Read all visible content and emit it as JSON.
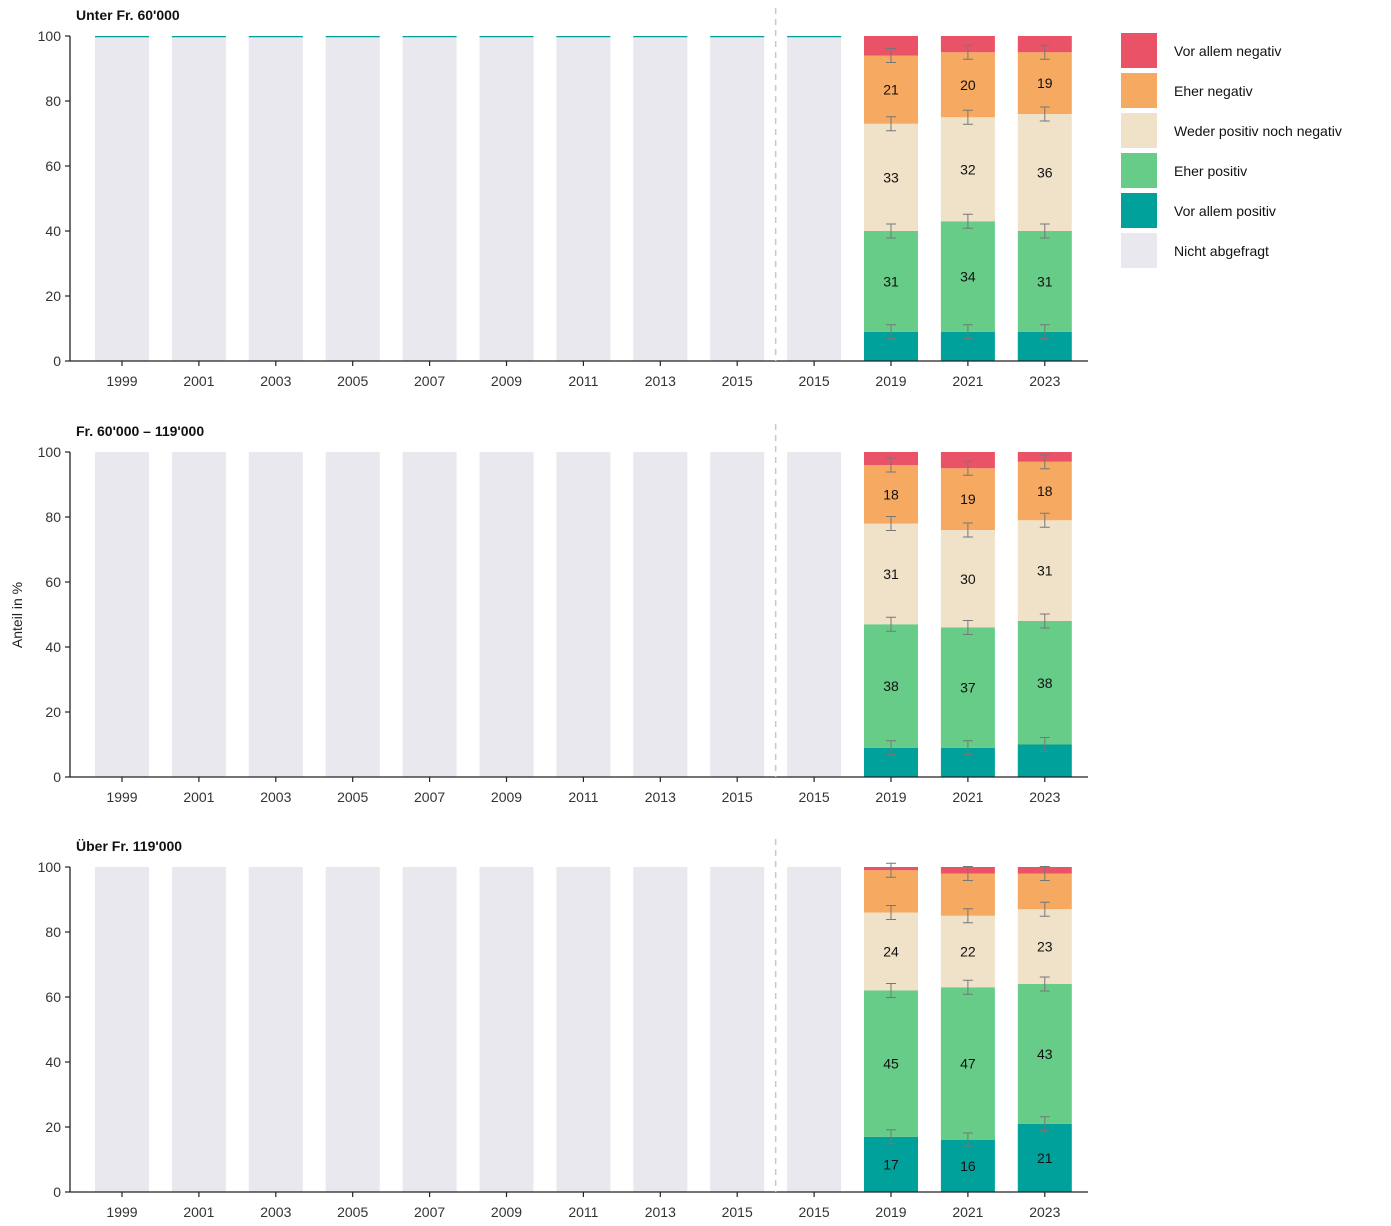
{
  "chart_data": {
    "type": "bar",
    "stacked": true,
    "ylabel": "Anteil in %",
    "ylim": [
      0,
      100
    ],
    "yticks": [
      0,
      20,
      40,
      60,
      80,
      100
    ],
    "categories": [
      "1999",
      "2001",
      "2003",
      "2005",
      "2007",
      "2009",
      "2011",
      "2013",
      "2015",
      "2015",
      "2019",
      "2021",
      "2023"
    ],
    "break_after_index": 8,
    "legend_position": "right",
    "legend": [
      {
        "key": "vor_allem_negativ",
        "label": "Vor allem negativ",
        "color": "#ea5268"
      },
      {
        "key": "eher_negativ",
        "label": "Eher negativ",
        "color": "#f5a961"
      },
      {
        "key": "weder",
        "label": "Weder positiv noch negativ",
        "color": "#efe2c8"
      },
      {
        "key": "eher_positiv",
        "label": "Eher positiv",
        "color": "#66cc88"
      },
      {
        "key": "vor_allem_positiv",
        "label": "Vor allem positiv",
        "color": "#00a19a"
      },
      {
        "key": "nicht_abgefragt",
        "label": "Nicht abgefragt",
        "color": "#e8e8ee"
      }
    ],
    "panels": [
      {
        "title": "Unter Fr. 60'000",
        "not_asked_count": 10,
        "surveyed": [
          {
            "year": "2019",
            "values": [
              9,
              31,
              33,
              21,
              6
            ],
            "labels": [
              "",
              "31",
              "33",
              "21",
              ""
            ]
          },
          {
            "year": "2021",
            "values": [
              9,
              34,
              32,
              20,
              5
            ],
            "labels": [
              "",
              "34",
              "32",
              "20",
              ""
            ]
          },
          {
            "year": "2023",
            "values": [
              9,
              31,
              36,
              19,
              5
            ],
            "labels": [
              "",
              "31",
              "36",
              "19",
              ""
            ]
          }
        ]
      },
      {
        "title": "Fr. 60'000 – 119'000",
        "not_asked_count": 10,
        "surveyed": [
          {
            "year": "2019",
            "values": [
              9,
              38,
              31,
              18,
              4
            ],
            "labels": [
              "",
              "38",
              "31",
              "18",
              ""
            ]
          },
          {
            "year": "2021",
            "values": [
              9,
              37,
              30,
              19,
              5
            ],
            "labels": [
              "",
              "37",
              "30",
              "19",
              ""
            ]
          },
          {
            "year": "2023",
            "values": [
              10,
              38,
              31,
              18,
              3
            ],
            "labels": [
              "",
              "38",
              "31",
              "18",
              ""
            ]
          }
        ]
      },
      {
        "title": "Über Fr. 119'000",
        "not_asked_count": 10,
        "surveyed": [
          {
            "year": "2019",
            "values": [
              17,
              45,
              24,
              13,
              1
            ],
            "labels": [
              "17",
              "45",
              "24",
              "",
              ""
            ]
          },
          {
            "year": "2021",
            "values": [
              16,
              47,
              22,
              13,
              2
            ],
            "labels": [
              "16",
              "47",
              "22",
              "",
              ""
            ]
          },
          {
            "year": "2023",
            "values": [
              21,
              43,
              23,
              11,
              2
            ],
            "labels": [
              "21",
              "43",
              "23",
              "",
              ""
            ]
          }
        ]
      }
    ]
  }
}
